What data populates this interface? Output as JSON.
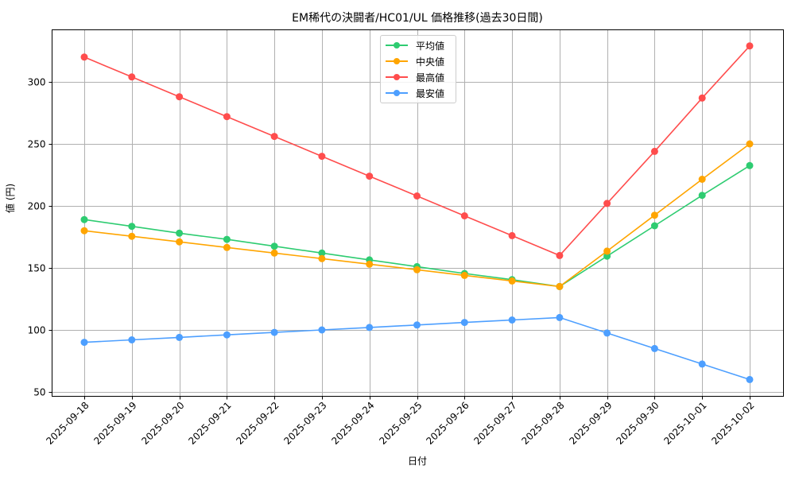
{
  "chart_data": {
    "type": "line",
    "title": "EM稀代の決闘者/HC01/UL 価格推移(過去30日間)",
    "xlabel": "日付",
    "ylabel": "値 (円)",
    "categories": [
      "2025-09-18",
      "2025-09-19",
      "2025-09-20",
      "2025-09-21",
      "2025-09-22",
      "2025-09-23",
      "2025-09-24",
      "2025-09-25",
      "2025-09-26",
      "2025-09-27",
      "2025-09-28",
      "2025-09-29",
      "2025-09-30",
      "2025-10-01",
      "2025-10-02"
    ],
    "yticks": [
      50,
      100,
      150,
      200,
      250,
      300
    ],
    "ylim": [
      47,
      340
    ],
    "grid": true,
    "legend_position": "upper center",
    "series": [
      {
        "name": "平均値",
        "color": "#2ecc71",
        "values": [
          189,
          183.5,
          178,
          173,
          167.5,
          162,
          156.5,
          151,
          145.5,
          140.5,
          135,
          159.5,
          184,
          208.5,
          232.5
        ]
      },
      {
        "name": "中央値",
        "color": "#ffa500",
        "values": [
          180,
          175.5,
          171,
          166.5,
          162,
          157.5,
          153,
          148.5,
          144,
          139.5,
          135,
          163.5,
          192.5,
          221.5,
          250
        ]
      },
      {
        "name": "最高値",
        "color": "#ff4d4d",
        "values": [
          320,
          304,
          288,
          272,
          256,
          240,
          224,
          208,
          192,
          176,
          160,
          202,
          244,
          287,
          329
        ]
      },
      {
        "name": "最安値",
        "color": "#4d9fff",
        "values": [
          90,
          92,
          94,
          96,
          98,
          100,
          102,
          104,
          106,
          108,
          110,
          97.5,
          85,
          72.5,
          60
        ]
      }
    ]
  }
}
